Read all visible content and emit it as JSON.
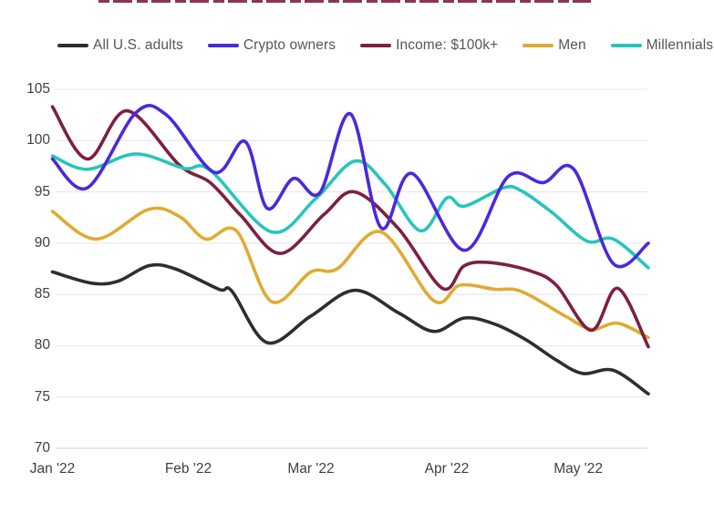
{
  "page": {
    "background": "#ffffff"
  },
  "title_remnant": {
    "note": "chart title is cropped out of view at the very top edge; only bottom slivers of dark-red letters are visible",
    "color": "#7d1f42"
  },
  "axis_style": {
    "tick_label_color": "#3e4045",
    "legend_text_color": "#55565a",
    "grid_color": "#e4e4e4",
    "bottom_grid_color": "#cfcfcf"
  },
  "chart_data": {
    "type": "line",
    "title": "",
    "xlabel": "",
    "ylabel": "",
    "x_unit": "days since 2022-01-01 (weekly tracking data, Jan–mid May 2022)",
    "x_range_days": [
      0,
      136
    ],
    "ylim": [
      70,
      105
    ],
    "y_ticks": [
      105,
      100,
      95,
      90,
      85,
      80,
      75,
      70
    ],
    "x_ticks": [
      {
        "label": "Jan '22",
        "day": 0
      },
      {
        "label": "Feb '22",
        "day": 31
      },
      {
        "label": "Mar '22",
        "day": 59
      },
      {
        "label": "Apr '22",
        "day": 90
      },
      {
        "label": "May '22",
        "day": 120
      }
    ],
    "grid": "horizontal",
    "legend_position": "top",
    "series": [
      {
        "name": "All U.S. adults",
        "color": "#2e2e2e",
        "points": [
          [
            0,
            87.2
          ],
          [
            9,
            86.1
          ],
          [
            15,
            86.3
          ],
          [
            22,
            87.8
          ],
          [
            28,
            87.5
          ],
          [
            38,
            85.5
          ],
          [
            41,
            85.3
          ],
          [
            49,
            80.3
          ],
          [
            59,
            82.9
          ],
          [
            69,
            85.4
          ],
          [
            79,
            83.2
          ],
          [
            87,
            81.4
          ],
          [
            94,
            82.7
          ],
          [
            101,
            82.1
          ],
          [
            108,
            80.6
          ],
          [
            115,
            78.6
          ],
          [
            121,
            77.3
          ],
          [
            128,
            77.6
          ],
          [
            136,
            75.3
          ]
        ]
      },
      {
        "name": "Crypto owners",
        "color": "#4b28dd",
        "points": [
          [
            0,
            98.2
          ],
          [
            8,
            95.4
          ],
          [
            19,
            102.7
          ],
          [
            26,
            102.5
          ],
          [
            37,
            96.9
          ],
          [
            44,
            99.9
          ],
          [
            49,
            93.4
          ],
          [
            55,
            96.3
          ],
          [
            61,
            94.9
          ],
          [
            68,
            102.6
          ],
          [
            75,
            91.5
          ],
          [
            82,
            96.8
          ],
          [
            94,
            89.3
          ],
          [
            104,
            96.5
          ],
          [
            112,
            95.9
          ],
          [
            119,
            97.2
          ],
          [
            128,
            88.0
          ],
          [
            136,
            90.0
          ]
        ]
      },
      {
        "name": "Income: $100k+",
        "color": "#7d1f42",
        "points": [
          [
            0,
            103.3
          ],
          [
            8,
            98.2
          ],
          [
            17,
            102.9
          ],
          [
            29,
            97.6
          ],
          [
            36,
            95.9
          ],
          [
            43,
            92.7
          ],
          [
            52,
            89.0
          ],
          [
            62,
            92.8
          ],
          [
            69,
            95.0
          ],
          [
            79,
            91.4
          ],
          [
            89,
            85.6
          ],
          [
            94,
            87.8
          ],
          [
            100,
            88.1
          ],
          [
            109,
            87.3
          ],
          [
            115,
            85.9
          ],
          [
            123,
            81.5
          ],
          [
            129,
            85.6
          ],
          [
            136,
            79.9
          ]
        ]
      },
      {
        "name": "Men",
        "color": "#dfac32",
        "points": [
          [
            0,
            93.1
          ],
          [
            10,
            90.4
          ],
          [
            22,
            93.3
          ],
          [
            29,
            92.6
          ],
          [
            35,
            90.4
          ],
          [
            42,
            91.2
          ],
          [
            50,
            84.3
          ],
          [
            59,
            87.2
          ],
          [
            65,
            87.5
          ],
          [
            75,
            91.1
          ],
          [
            87,
            84.4
          ],
          [
            93,
            85.9
          ],
          [
            101,
            85.5
          ],
          [
            107,
            85.3
          ],
          [
            117,
            82.9
          ],
          [
            123,
            81.6
          ],
          [
            129,
            82.2
          ],
          [
            136,
            80.8
          ]
        ]
      },
      {
        "name": "Millennials",
        "color": "#29c4bb",
        "points": [
          [
            0,
            98.5
          ],
          [
            8,
            97.2
          ],
          [
            19,
            98.7
          ],
          [
            30,
            97.3
          ],
          [
            36,
            97.1
          ],
          [
            50,
            91.1
          ],
          [
            60,
            94.3
          ],
          [
            69,
            98.0
          ],
          [
            76,
            95.7
          ],
          [
            84,
            91.2
          ],
          [
            90,
            94.4
          ],
          [
            94,
            93.6
          ],
          [
            103,
            95.4
          ],
          [
            107,
            95.1
          ],
          [
            114,
            93.0
          ],
          [
            122,
            90.2
          ],
          [
            128,
            90.4
          ],
          [
            136,
            87.6
          ]
        ]
      }
    ]
  }
}
